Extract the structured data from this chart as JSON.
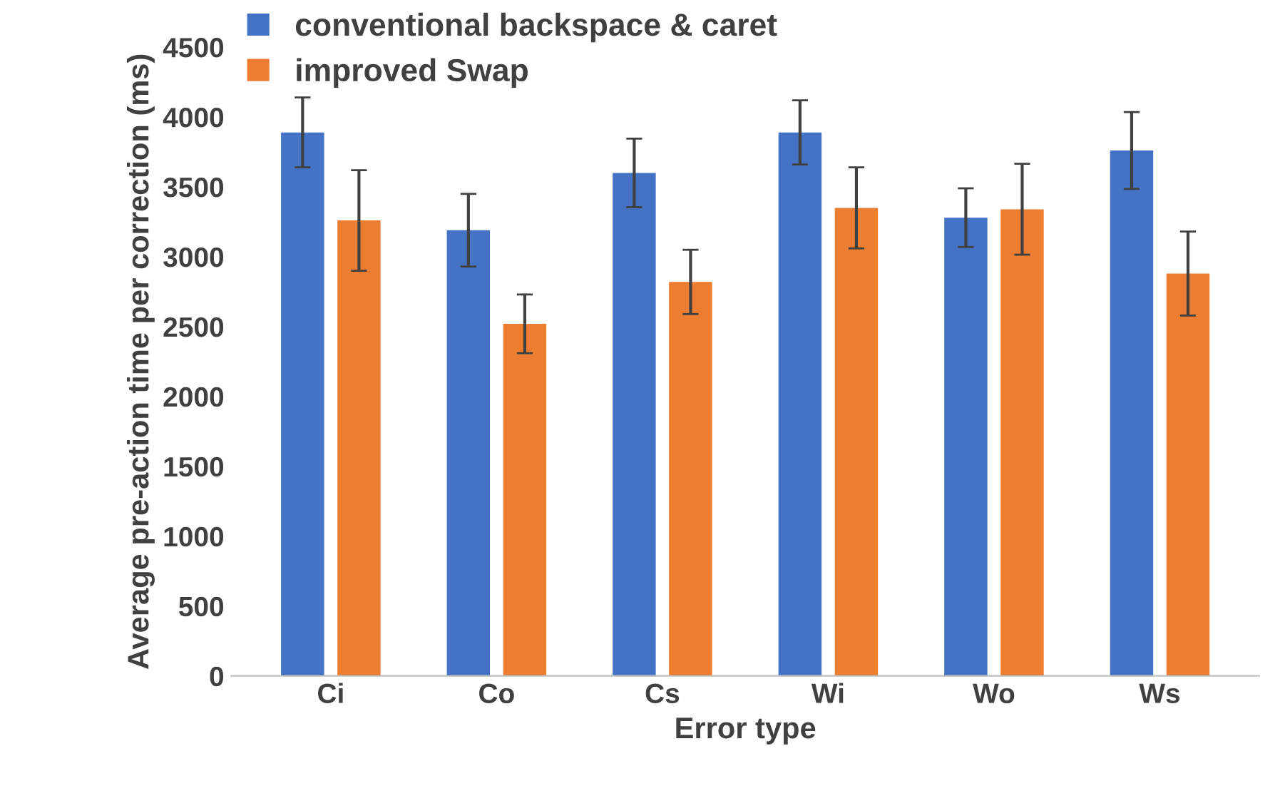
{
  "chart_data": {
    "type": "bar",
    "xlabel": "Error type",
    "ylabel": "Average pre-action time per correction (ms)",
    "categories": [
      "Ci",
      "Co",
      "Cs",
      "Wi",
      "Wo",
      "Ws"
    ],
    "series": [
      {
        "name": "conventional backspace & caret",
        "color": "#4472c4",
        "values": [
          3890,
          3190,
          3600,
          3890,
          3280,
          3760
        ],
        "errors": [
          250,
          260,
          245,
          230,
          210,
          275
        ]
      },
      {
        "name": "improved Swap",
        "color": "#ed7d31",
        "values": [
          3260,
          2520,
          2820,
          3350,
          3340,
          2880
        ],
        "errors": [
          360,
          210,
          230,
          290,
          325,
          300
        ]
      }
    ],
    "ylim": [
      0,
      4500
    ],
    "yticks": [
      0,
      500,
      1000,
      1500,
      2000,
      2500,
      3000,
      3500,
      4000,
      4500
    ],
    "grid": false,
    "legend": "top left"
  }
}
